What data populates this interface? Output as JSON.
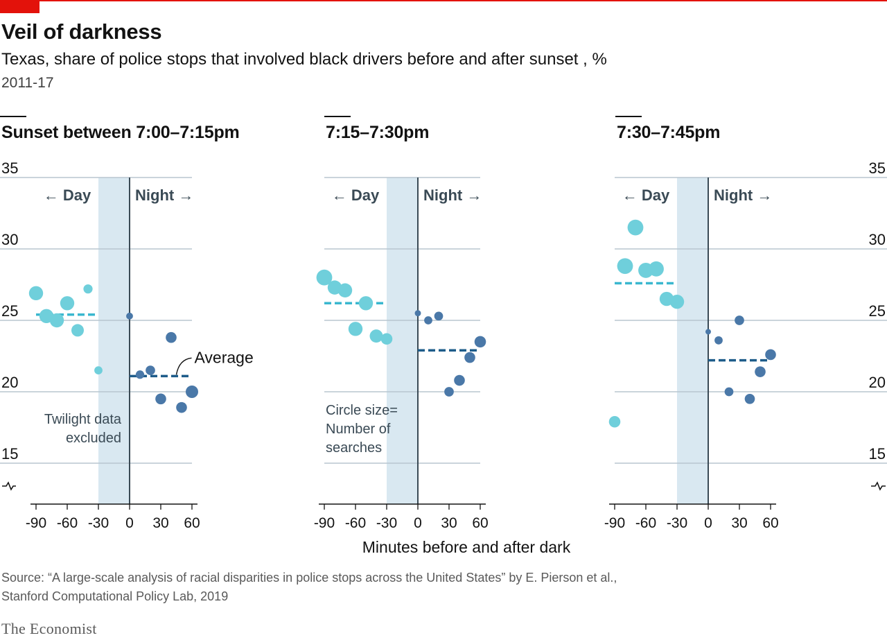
{
  "header": {
    "title": "Veil of darkness",
    "subtitle": "Texas, share of police stops that involved black drivers before and after sunset , %",
    "dates": "2011-17"
  },
  "colors": {
    "day": "#6fcfdb",
    "night": "#4a78a8",
    "day_avg": "#3ab7cf",
    "night_avg": "#1e5c8a",
    "twilight": "#d9e8f1",
    "grid": "#b8c6cf",
    "accent_red": "#e3120b"
  },
  "chart_data": {
    "type": "scatter",
    "x_label": "Minutes before and after dark",
    "x_ticks": [
      -90,
      -60,
      -30,
      0,
      30,
      60
    ],
    "x_tick_labels": [
      "-90",
      "-60",
      "-30",
      "0",
      "30",
      "60"
    ],
    "y_ticks": [
      15,
      20,
      25,
      30,
      35
    ],
    "y_tick_labels": [
      "15",
      "20",
      "25",
      "30",
      "35"
    ],
    "ylim": [
      15,
      35
    ],
    "xlim": [
      -90,
      60
    ],
    "y_axis_break": true,
    "grid": true,
    "twilight_range": [
      -30,
      0
    ],
    "labels": {
      "day": "← Day",
      "night": "Night →",
      "average": "Average",
      "twilight_note": [
        "Twilight data",
        "excluded"
      ],
      "size_note": [
        "Circle size=",
        "Number of",
        "searches"
      ]
    },
    "panels": [
      {
        "title": "Sunset between 7:00–7:15pm",
        "day_average": 25.4,
        "night_average": 21.1,
        "day_points": [
          {
            "x": -90,
            "y": 26.9,
            "size": 3
          },
          {
            "x": -80,
            "y": 25.3,
            "size": 3
          },
          {
            "x": -70,
            "y": 25.0,
            "size": 3
          },
          {
            "x": -60,
            "y": 26.2,
            "size": 3
          },
          {
            "x": -50,
            "y": 24.3,
            "size": 2.5
          },
          {
            "x": -40,
            "y": 27.2,
            "size": 1.5
          },
          {
            "x": -30,
            "y": 21.5,
            "size": 1.2
          }
        ],
        "night_points": [
          {
            "x": 0,
            "y": 25.3,
            "size": 0.8
          },
          {
            "x": 10,
            "y": 21.2,
            "size": 1.3
          },
          {
            "x": 20,
            "y": 21.5,
            "size": 1.6
          },
          {
            "x": 30,
            "y": 19.5,
            "size": 2.0
          },
          {
            "x": 40,
            "y": 23.8,
            "size": 2.0
          },
          {
            "x": 50,
            "y": 18.9,
            "size": 2.0
          },
          {
            "x": 60,
            "y": 20.0,
            "size": 2.5
          }
        ]
      },
      {
        "title": "7:15–7:30pm",
        "day_average": 26.2,
        "night_average": 22.9,
        "day_points": [
          {
            "x": -90,
            "y": 28.0,
            "size": 3.5
          },
          {
            "x": -80,
            "y": 27.3,
            "size": 3
          },
          {
            "x": -70,
            "y": 27.1,
            "size": 3
          },
          {
            "x": -60,
            "y": 24.4,
            "size": 3
          },
          {
            "x": -50,
            "y": 26.2,
            "size": 3
          },
          {
            "x": -40,
            "y": 23.9,
            "size": 2.7
          },
          {
            "x": -30,
            "y": 23.7,
            "size": 2.2
          }
        ],
        "night_points": [
          {
            "x": 0,
            "y": 25.5,
            "size": 0.6
          },
          {
            "x": 10,
            "y": 25.0,
            "size": 1.2
          },
          {
            "x": 20,
            "y": 25.3,
            "size": 1.4
          },
          {
            "x": 30,
            "y": 20.0,
            "size": 1.6
          },
          {
            "x": 40,
            "y": 20.8,
            "size": 2.0
          },
          {
            "x": 50,
            "y": 22.4,
            "size": 2.0
          },
          {
            "x": 60,
            "y": 23.5,
            "size": 2.2
          }
        ]
      },
      {
        "title": "7:30–7:45pm",
        "day_average": 27.6,
        "night_average": 22.2,
        "day_points": [
          {
            "x": -90,
            "y": 17.9,
            "size": 2.2
          },
          {
            "x": -80,
            "y": 28.8,
            "size": 3.5
          },
          {
            "x": -70,
            "y": 31.5,
            "size": 3.5
          },
          {
            "x": -60,
            "y": 28.5,
            "size": 3.3
          },
          {
            "x": -50,
            "y": 28.6,
            "size": 3.3
          },
          {
            "x": -40,
            "y": 26.5,
            "size": 3
          },
          {
            "x": -30,
            "y": 26.3,
            "size": 3
          }
        ],
        "night_points": [
          {
            "x": 0,
            "y": 24.2,
            "size": 0.4
          },
          {
            "x": 10,
            "y": 23.6,
            "size": 1.2
          },
          {
            "x": 20,
            "y": 20.0,
            "size": 1.4
          },
          {
            "x": 30,
            "y": 25.0,
            "size": 1.6
          },
          {
            "x": 40,
            "y": 19.5,
            "size": 1.8
          },
          {
            "x": 50,
            "y": 21.4,
            "size": 2.0
          },
          {
            "x": 60,
            "y": 22.6,
            "size": 2.0
          }
        ]
      }
    ]
  },
  "footer": {
    "source_line1": "Source: “A large-scale analysis of racial disparities in police stops across the United States” by E. Pierson et al.,",
    "source_line2": "Stanford Computational Policy Lab, 2019",
    "brand": "The Economist"
  }
}
